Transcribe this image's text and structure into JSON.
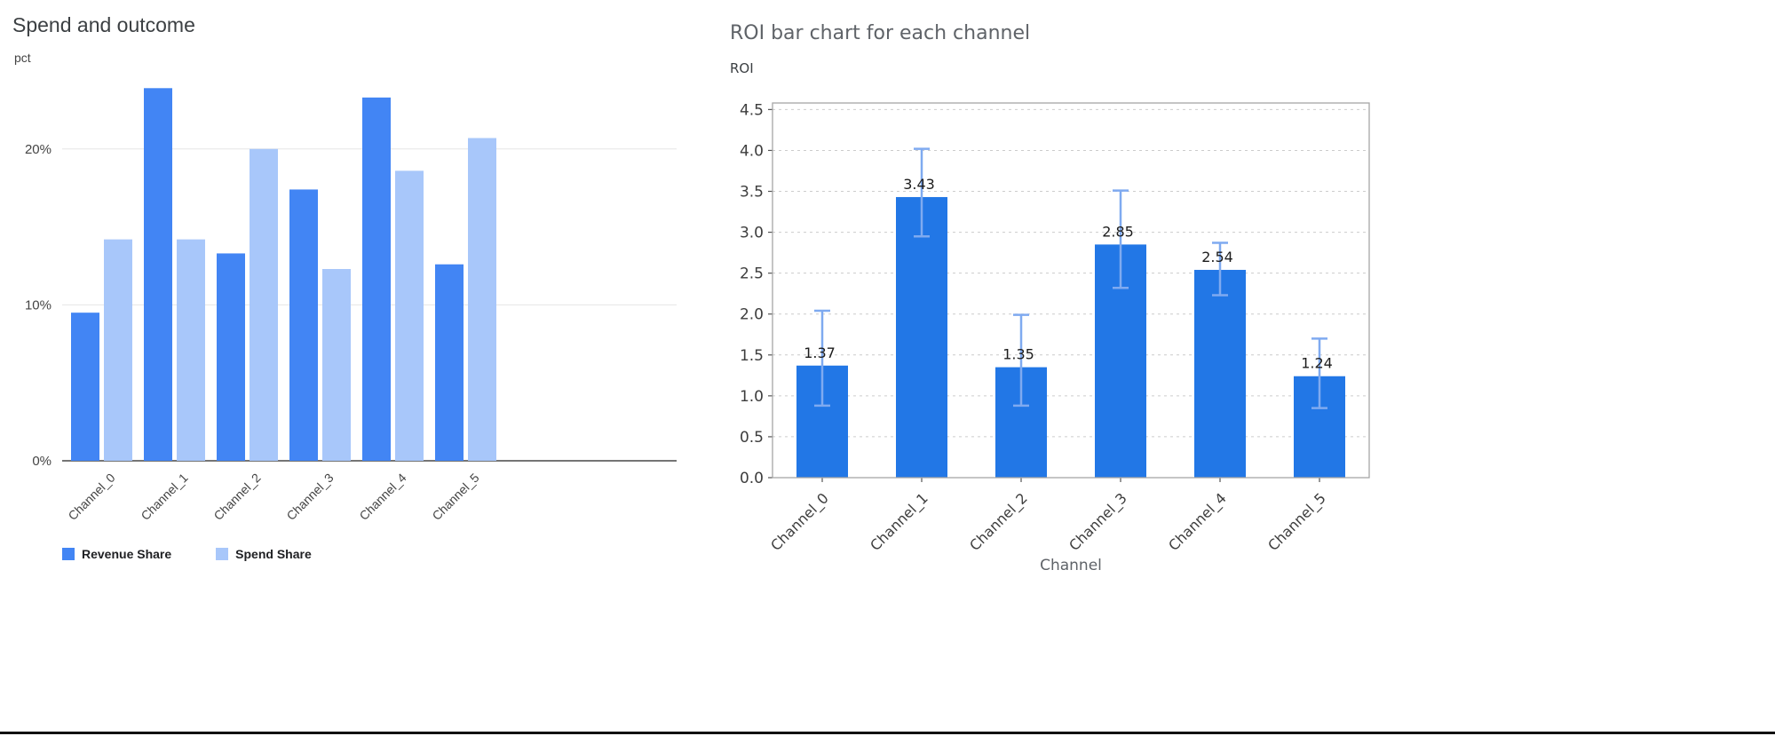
{
  "page": {
    "background": "#ffffff",
    "bottom_rule_color": "#111111"
  },
  "chart_data": [
    {
      "type": "bar",
      "title": "Spend and outcome",
      "ylabel": "pct",
      "xlabel": "",
      "categories": [
        "Channel_0",
        "Channel_1",
        "Channel_2",
        "Channel_3",
        "Channel_4",
        "Channel_5"
      ],
      "series": [
        {
          "name": "Revenue Share",
          "color": "#4285f4",
          "values": [
            9.5,
            23.9,
            13.3,
            17.4,
            23.3,
            12.6
          ]
        },
        {
          "name": "Spend Share",
          "color": "#a8c7fa",
          "values": [
            14.2,
            14.2,
            20.0,
            12.3,
            18.6,
            20.7
          ]
        }
      ],
      "yticks": [
        0,
        10,
        20
      ],
      "ytick_labels": [
        "0%",
        "10%",
        "20%"
      ],
      "ylim": [
        0,
        24.6
      ],
      "grid": true,
      "legend_position": "bottom",
      "axis_color": "#757575",
      "grid_color": "#e6e6e6",
      "tick_label_color": "#444444",
      "title_color": "#3c4043"
    },
    {
      "type": "bar",
      "title": "ROI bar chart for each channel",
      "ylabel": "ROI",
      "xlabel": "Channel",
      "categories": [
        "Channel_0",
        "Channel_1",
        "Channel_2",
        "Channel_3",
        "Channel_4",
        "Channel_5"
      ],
      "values": [
        1.37,
        3.43,
        1.35,
        2.85,
        2.54,
        1.24
      ],
      "bar_labels": [
        "1.37",
        "3.43",
        "1.35",
        "2.85",
        "2.54",
        "1.24"
      ],
      "error_low": [
        0.88,
        2.95,
        0.88,
        2.32,
        2.23,
        0.85
      ],
      "error_high": [
        2.04,
        4.02,
        1.99,
        3.51,
        2.87,
        1.7
      ],
      "yticks": [
        0,
        0.5,
        1.0,
        1.5,
        2.0,
        2.5,
        3.0,
        3.5,
        4.0,
        4.5
      ],
      "ylim": [
        0,
        4.58
      ],
      "grid": "dashed",
      "bar_color": "#2277e6",
      "error_color": "#7faaf0",
      "grid_color": "#cccccc",
      "border_color": "#a6a6a6",
      "tick_color": "#555555",
      "tick_label_color": "#3d3d3d",
      "value_label_color": "#1c1c1c",
      "xlabel_color": "#5f6368",
      "title_color": "#5f6368"
    }
  ]
}
